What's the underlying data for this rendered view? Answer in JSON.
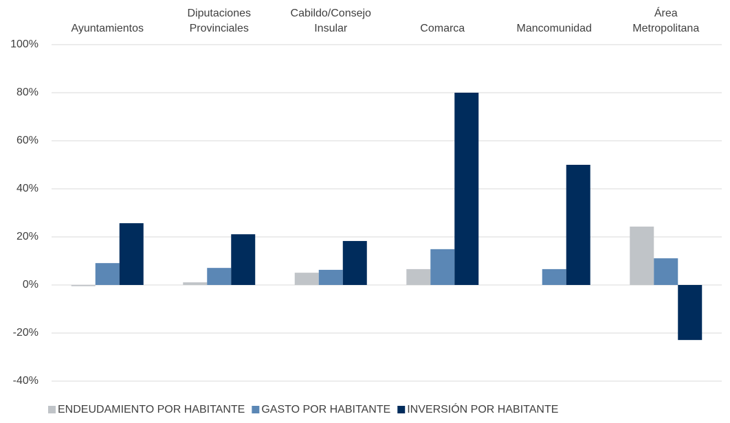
{
  "chart_data": {
    "type": "bar",
    "categories": [
      "Ayuntamientos",
      "Diputaciones Provinciales",
      "Cabildo/Consejo Insular",
      "Comarca",
      "Mancomunidad",
      "Área Metropolitana"
    ],
    "series": [
      {
        "name": "ENDEUDAMIENTO POR HABITANTE",
        "color": "#c0c4c8",
        "values": [
          -0.5,
          1.1,
          5.1,
          6.6,
          0,
          24.3
        ]
      },
      {
        "name": "GASTO POR HABITANTE",
        "color": "#5b87b5",
        "values": [
          9.1,
          7.1,
          6.3,
          14.9,
          6.6,
          11.1
        ]
      },
      {
        "name": "INVERSIÓN POR HABITANTE",
        "color": "#002c5c",
        "values": [
          25.7,
          21.1,
          18.3,
          80,
          50,
          -22.9
        ]
      }
    ],
    "ylim": [
      -40,
      100
    ],
    "yticks": [
      {
        "value": -40,
        "label": "-40%"
      },
      {
        "value": -20,
        "label": "-20%"
      },
      {
        "value": 0,
        "label": "0%"
      },
      {
        "value": 20,
        "label": "20%"
      },
      {
        "value": 40,
        "label": "40%"
      },
      {
        "value": 60,
        "label": "60%"
      },
      {
        "value": 80,
        "label": "80%"
      },
      {
        "value": 100,
        "label": "100%"
      }
    ],
    "grid": true,
    "legend": "bottom"
  }
}
